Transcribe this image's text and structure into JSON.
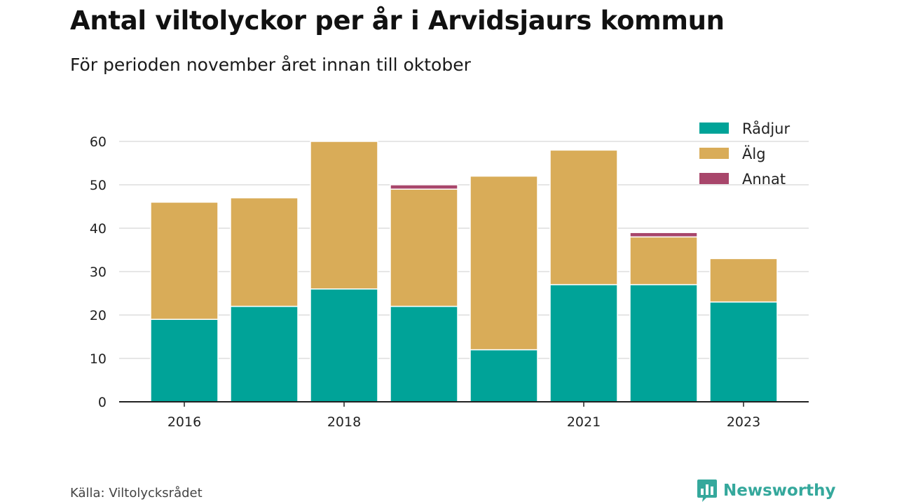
{
  "header": {
    "title": "Antal viltolyckor per år i Arvidsjaurs kommun",
    "subtitle": "För perioden november året innan till oktober"
  },
  "footer": {
    "source": "Källa: Viltolycksrådet",
    "brand": "Newsworthy",
    "brand_icon": "bar-chart-speech-bubble-icon"
  },
  "chart_data": {
    "type": "bar",
    "stacked": true,
    "categories": [
      "2016",
      "2017",
      "2018",
      "2019",
      "2020",
      "2021",
      "2022",
      "2023"
    ],
    "x_tick_labels": [
      "2016",
      "",
      "2018",
      "",
      "",
      "2021",
      "",
      "2023"
    ],
    "series": [
      {
        "name": "Rådjur",
        "color": "#00a398",
        "values": [
          19,
          22,
          26,
          22,
          12,
          27,
          27,
          23
        ]
      },
      {
        "name": "Älg",
        "color": "#d9ac58",
        "values": [
          27,
          25,
          34,
          27,
          40,
          31,
          11,
          10
        ]
      },
      {
        "name": "Annat",
        "color": "#a8466b",
        "values": [
          0,
          0,
          0,
          1,
          0,
          0,
          1,
          0
        ]
      }
    ],
    "ylim": [
      0,
      62
    ],
    "yticks": [
      0,
      10,
      20,
      30,
      40,
      50,
      60
    ],
    "xlabel": "",
    "ylabel": "",
    "grid": true,
    "legend_position": "top-right"
  }
}
